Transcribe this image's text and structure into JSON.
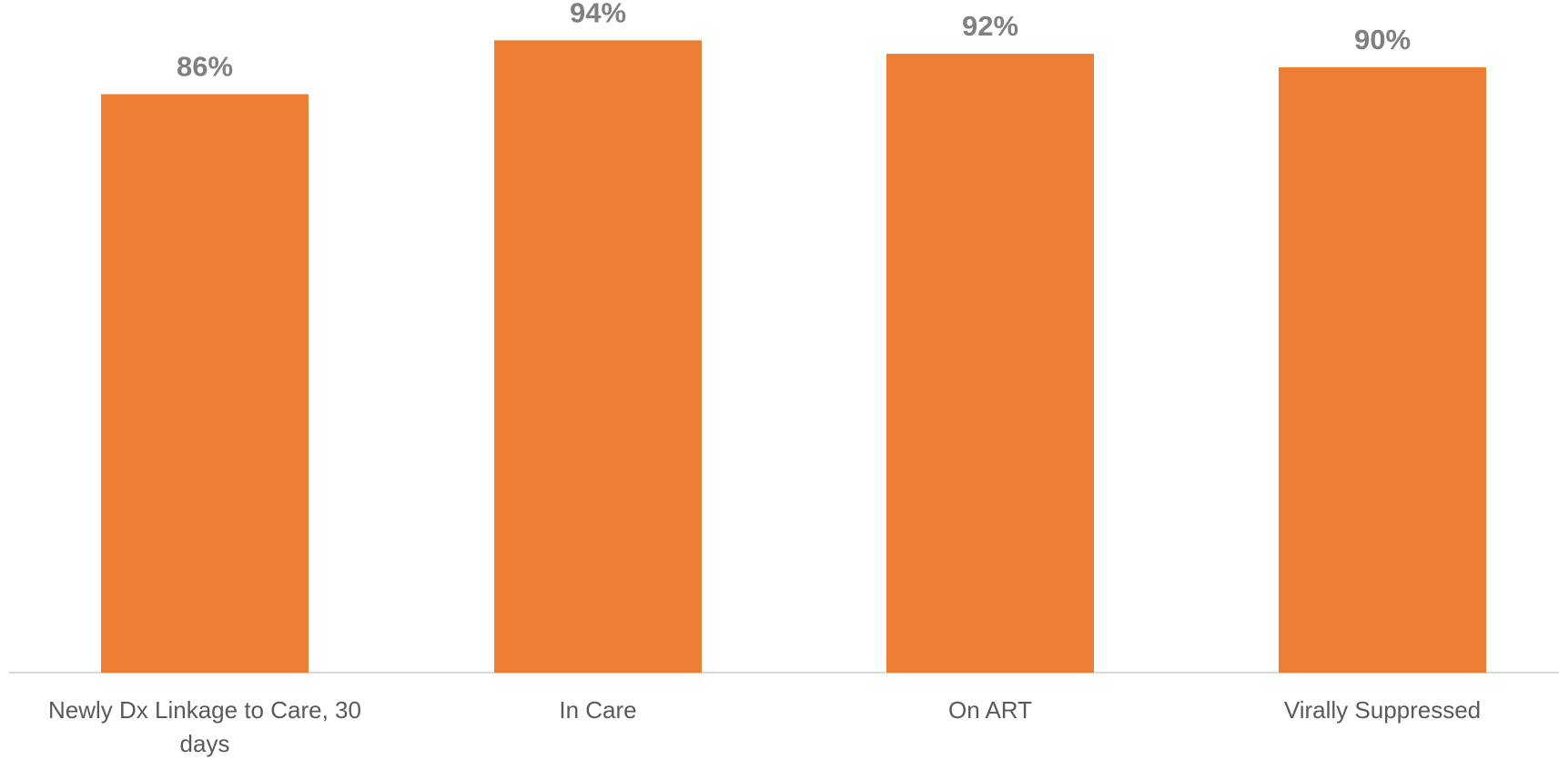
{
  "chart_data": {
    "type": "bar",
    "categories": [
      [
        "Newly Dx Linkage to Care, 30",
        "days"
      ],
      [
        "In Care"
      ],
      [
        "On ART"
      ],
      [
        "Virally Suppressed"
      ]
    ],
    "values": [
      86,
      94,
      92,
      90
    ],
    "data_labels": [
      "86%",
      "94%",
      "92%",
      "90%"
    ],
    "value_unit": "percent",
    "ylim": [
      0,
      100
    ],
    "title": "",
    "xlabel": "",
    "ylabel": "",
    "grid": false,
    "legend": "none",
    "colors": {
      "bar": "#ED7D31",
      "data_label": "#808080",
      "category_label": "#595959",
      "axis_line": "#D9D9D9"
    }
  }
}
